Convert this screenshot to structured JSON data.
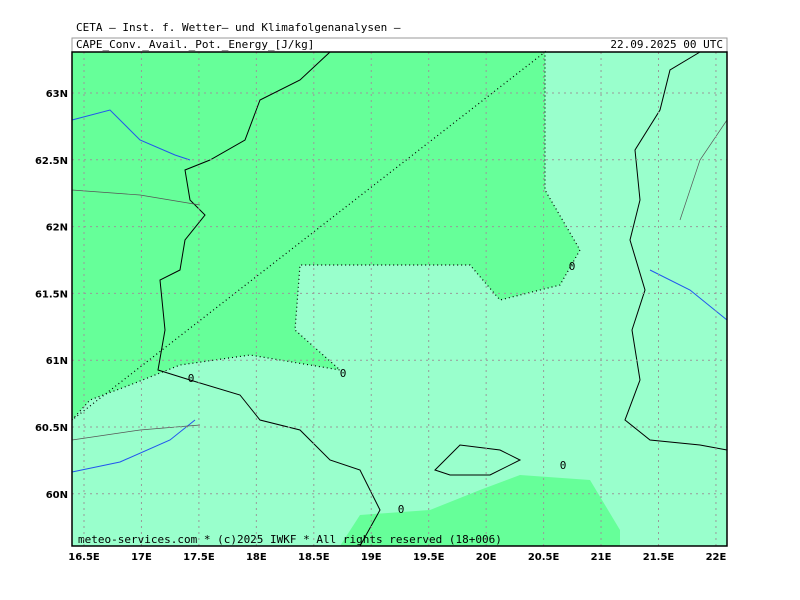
{
  "header": {
    "title": "CETA – Inst. f. Wetter– und Klimafolgenanalysen –",
    "field": "CAPE_Conv._Avail._Pot._Energy_[J/kg]",
    "valid_time": "22.09.2025 00 UTC"
  },
  "map": {
    "lat_labels": [
      "63N",
      "62.5N",
      "62N",
      "61.5N",
      "61N",
      "60.5N",
      "60N"
    ],
    "lon_labels": [
      "16.5E",
      "17E",
      "17.5E",
      "18E",
      "18.5E",
      "19E",
      "19.5E",
      "20E",
      "20.5E",
      "21E",
      "21.5E",
      "22E"
    ],
    "contour_labels": [
      "0",
      "0",
      "0",
      "0",
      "0"
    ]
  },
  "footer": "meteo-services.com * (c)2025 IWKF * All rights reserved (18+006)"
}
